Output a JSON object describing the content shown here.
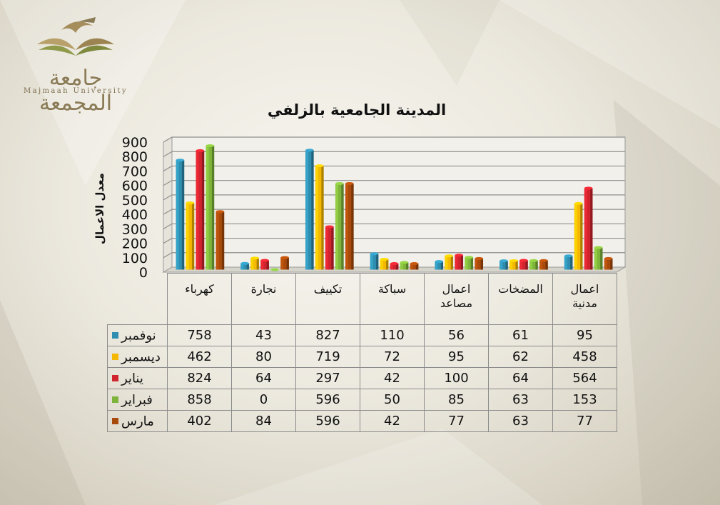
{
  "logo": {
    "arabic_name": "جامعة المجمعة",
    "english_name": "Majmaah University",
    "color": "#8a7a55"
  },
  "chart_data": {
    "type": "bar",
    "title": "المدينة الجامعية بالزلفي",
    "ylabel": "معدل الاعمال",
    "xlabel": "",
    "ylim": [
      0,
      900
    ],
    "yticks": [
      0,
      100,
      200,
      300,
      400,
      500,
      600,
      700,
      800,
      900
    ],
    "grid": true,
    "legend_placement": "data-table-left",
    "categories": [
      "كهرباء",
      "نجارة",
      "تكييف",
      "سباكة",
      "اعمال مصاعد",
      "المضخات",
      "اعمال مدنية"
    ],
    "category_lines": [
      [
        "كهرباء"
      ],
      [
        "نجارة"
      ],
      [
        "تكييف"
      ],
      [
        "سباكة"
      ],
      [
        "اعمال",
        "مصاعد"
      ],
      [
        "المضخات"
      ],
      [
        "اعمال",
        "مدنية"
      ]
    ],
    "series": [
      {
        "name": "نوفمبر",
        "color": "#2f8eb0",
        "values": [
          758,
          43,
          827,
          110,
          56,
          61,
          95
        ]
      },
      {
        "name": "ديسمبر",
        "color": "#f5b800",
        "values": [
          462,
          80,
          719,
          72,
          95,
          62,
          458
        ]
      },
      {
        "name": "يناير",
        "color": "#d0242e",
        "values": [
          824,
          64,
          297,
          42,
          100,
          64,
          564
        ]
      },
      {
        "name": "فبراير",
        "color": "#7fb43a",
        "values": [
          858,
          0,
          596,
          50,
          85,
          63,
          153
        ]
      },
      {
        "name": "مارس",
        "color": "#a84a0c",
        "values": [
          402,
          84,
          596,
          42,
          77,
          63,
          77
        ]
      }
    ]
  }
}
